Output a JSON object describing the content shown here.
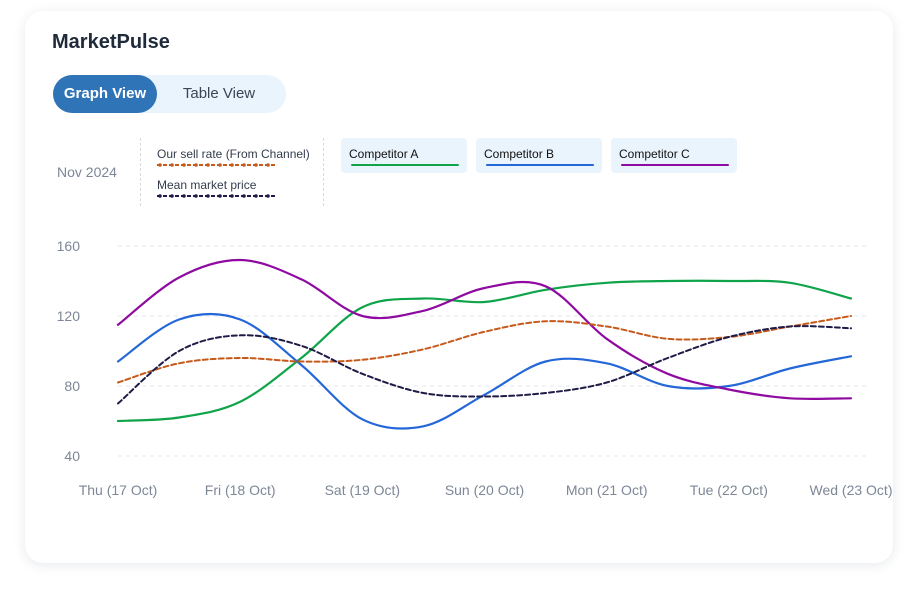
{
  "app": {
    "title": "MarketPulse"
  },
  "view_toggle": {
    "graph_label": "Graph View",
    "table_label": "Table View",
    "active": "graph"
  },
  "period_label": "Nov 2024",
  "legend": {
    "sell_rate_label": "Our sell rate (From Channel)",
    "mean_price_label": "Mean market price",
    "competitors": [
      {
        "label": "Competitor A",
        "color": "#10a44a"
      },
      {
        "label": "Competitor B",
        "color": "#2467d8"
      },
      {
        "label": "Competitor C",
        "color": "#8e0aa0"
      }
    ]
  },
  "chart_data": {
    "type": "line",
    "title": "",
    "xlabel": "",
    "ylabel": "",
    "categories": [
      "Thu (17 Oct)",
      "Fri (18 Oct)",
      "Sat (19 Oct)",
      "Sun (20 Oct)",
      "Mon (21 Oct)",
      "Tue (22 Oct)",
      "Wed (23 Oct)"
    ],
    "x": [
      0,
      0.5,
      1,
      1.5,
      2,
      2.5,
      3,
      3.5,
      4,
      4.5,
      5,
      5.5,
      6
    ],
    "yticks": [
      40,
      80,
      120,
      160
    ],
    "ylim": [
      30,
      165
    ],
    "grid": true,
    "series": [
      {
        "name": "Competitor A",
        "color": "#10a44a",
        "style": "solid",
        "values": [
          60,
          62,
          71,
          96,
          125,
          130,
          128,
          135,
          139,
          140,
          140,
          139,
          130
        ]
      },
      {
        "name": "Competitor B",
        "color": "#2467d8",
        "style": "solid",
        "values": [
          94,
          118,
          118,
          92,
          61,
          57,
          75,
          94,
          93,
          80,
          80,
          90,
          97
        ]
      },
      {
        "name": "Competitor C",
        "color": "#8e0aa0",
        "style": "solid",
        "values": [
          115,
          142,
          152,
          141,
          120,
          123,
          136,
          137,
          107,
          87,
          78,
          73,
          73
        ]
      },
      {
        "name": "Our sell rate (From Channel)",
        "color": "#c65a1c",
        "style": "dashed",
        "values": [
          82,
          93,
          96,
          94,
          95,
          101,
          111,
          117,
          114,
          107,
          108,
          114,
          120
        ]
      },
      {
        "name": "Mean market price",
        "color": "#1e1b46",
        "style": "dashed",
        "values": [
          70,
          100,
          109,
          103,
          87,
          76,
          74,
          76,
          82,
          96,
          108,
          114,
          113
        ]
      }
    ]
  }
}
